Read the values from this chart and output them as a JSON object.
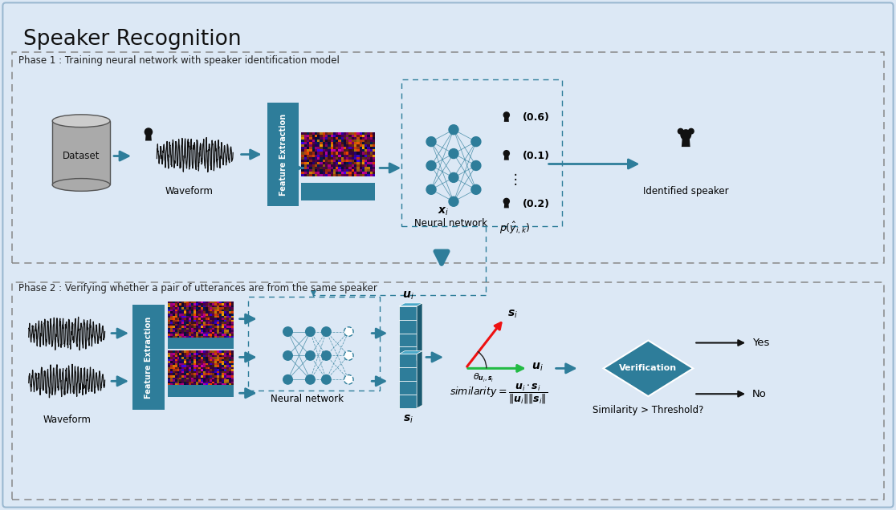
{
  "title": "Speaker Recognition",
  "bg_outer": "#dce8f5",
  "teal_color": "#2e7d9a",
  "teal_dark": "#1a5970",
  "teal_light": "#4aa8c8",
  "gray_cyl": "#aaaaaa",
  "gray_cyl_top": "#cccccc",
  "gray_cyl_ec": "#555555",
  "dashed_box_ec": "#888888",
  "dashed_nn_ec": "#2e7d9a",
  "phase1_label": "Phase 1 : Training neural network with speaker identification model",
  "phase2_label": "Phase 2 : Verifying whether a pair of utterances are from the same speaker",
  "verification_label": "Verification",
  "threshold_text": "Similarity > Threshold?",
  "yes_text": "Yes",
  "no_text": "No",
  "dataset_text": "Dataset",
  "waveform_text": "Waveform",
  "neural_network_text": "Neural network",
  "identified_speaker_text": "Identified speaker",
  "feature_extraction_text": "Feature Extraction",
  "probs": [
    "(0.6)",
    "(0.1)",
    "(0.2)"
  ]
}
